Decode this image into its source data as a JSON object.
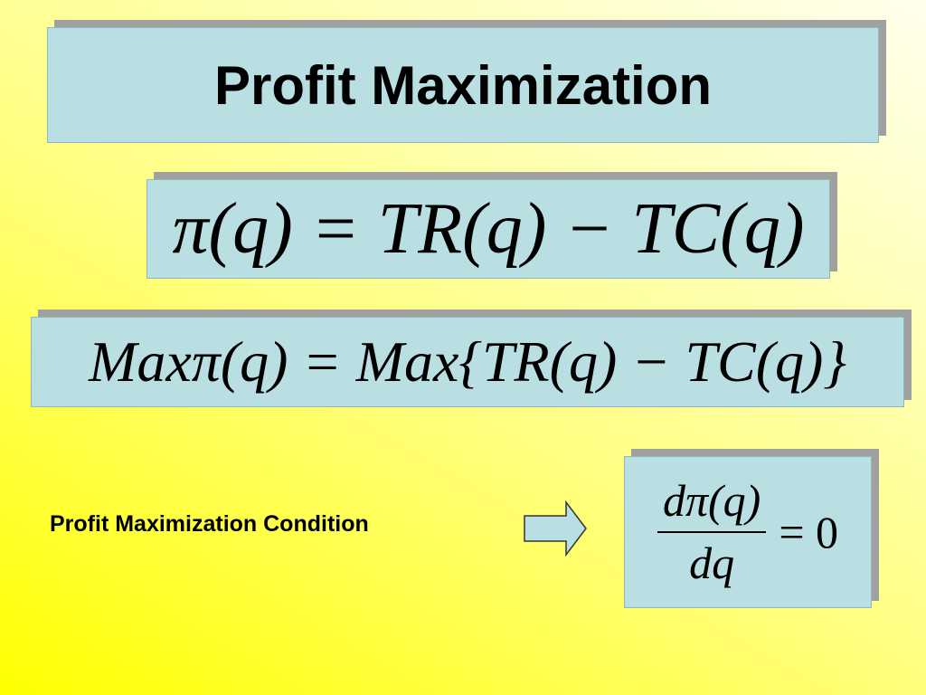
{
  "slide": {
    "title": "Profit Maximization",
    "equations": [
      "π(q) = TR(q) − TC(q)",
      "Maxπ(q) = Max{TR(q) − TC(q)}"
    ],
    "condition": {
      "label": "Profit Maximization Condition",
      "numerator": "dπ(q)",
      "denominator": "dq",
      "rhs": "= 0"
    }
  }
}
